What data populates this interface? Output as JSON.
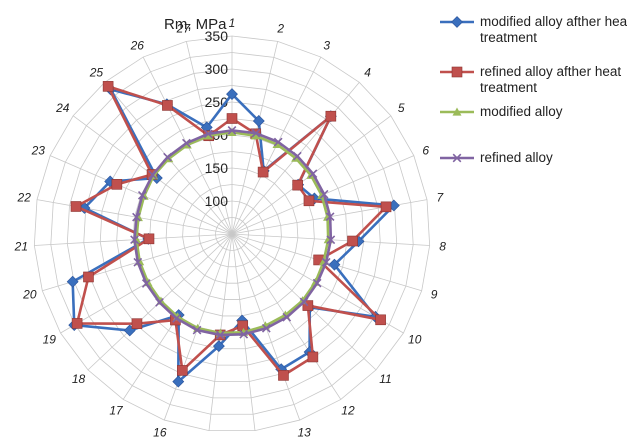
{
  "chart_data": {
    "type": "radar",
    "title": "",
    "axis_label": "Rm, MPa",
    "categories": [
      "1",
      "2",
      "3",
      "4",
      "5",
      "6",
      "7",
      "8",
      "9",
      "10",
      "11",
      "12",
      "13",
      "14",
      "15",
      "16",
      "17",
      "18",
      "19",
      "20",
      "21",
      "22",
      "23",
      "24",
      "25",
      "26",
      "27"
    ],
    "radial_range": [
      50,
      350
    ],
    "radial_ticks": [
      100,
      150,
      200,
      250,
      300,
      350
    ],
    "grid": true,
    "legend_position": "top-right",
    "series": [
      {
        "name": "modified alloy afther heat treatment",
        "color": "#3a6fbd",
        "marker": "diamond",
        "values": [
          262,
          226,
          157,
          283,
          175,
          186,
          299,
          242,
          212,
          301,
          212,
          264,
          268,
          182,
          221,
          288,
          197,
          263,
          326,
          302,
          177,
          277,
          251,
          192,
          336,
          270,
          216
        ]
      },
      {
        "name": "refined alloy afther heat treatment",
        "color": "#c0504d",
        "marker": "square",
        "values": [
          225,
          206,
          155,
          283,
          174,
          177,
          287,
          233,
          187,
          310,
          208,
          273,
          278,
          190,
          204,
          270,
          206,
          248,
          321,
          277,
          176,
          290,
          240,
          201,
          342,
          268,
          203
        ]
      },
      {
        "name": "modified alloy",
        "color": "#9bbb59",
        "marker": "triangle",
        "values": [
          204,
          203,
          202,
          200,
          199,
          198,
          197,
          196,
          195,
          196,
          197,
          197,
          198,
          200,
          201,
          202,
          200,
          198,
          197,
          196,
          195,
          194,
          195,
          198,
          199,
          201,
          203
        ]
      },
      {
        "name": "refined alloy",
        "color": "#8064a2",
        "marker": "x",
        "values": [
          207,
          207,
          206,
          204,
          203,
          202,
          201,
          200,
          199,
          199,
          200,
          201,
          202,
          203,
          204,
          205,
          203,
          201,
          200,
          199,
          198,
          197,
          198,
          200,
          202,
          204,
          206
        ]
      }
    ]
  }
}
